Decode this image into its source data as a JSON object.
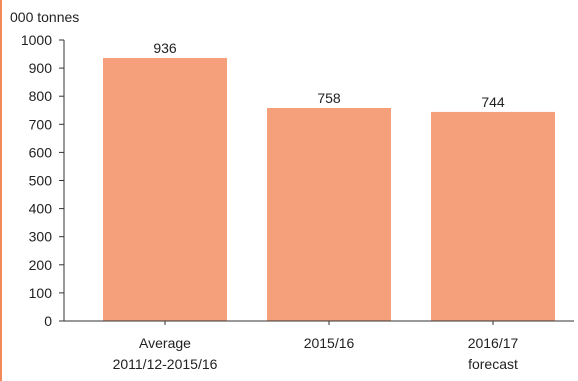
{
  "chart_data": {
    "type": "bar",
    "unit_label": "000 tonnes",
    "categories": [
      [
        "Average",
        "2011/12-2015/16"
      ],
      [
        "2015/16"
      ],
      [
        "2016/17",
        "forecast"
      ]
    ],
    "values": [
      936,
      758,
      744
    ],
    "data_labels": [
      "936",
      "758",
      "744"
    ],
    "yticks": [
      0,
      100,
      200,
      300,
      400,
      500,
      600,
      700,
      800,
      900,
      1000
    ],
    "ylim": [
      0,
      1000
    ],
    "title": "",
    "xlabel": "",
    "ylabel": "",
    "grid": false,
    "bar_color": "#f5a07a",
    "axis_color": "#333333",
    "accent_color": "#f08a5a"
  }
}
